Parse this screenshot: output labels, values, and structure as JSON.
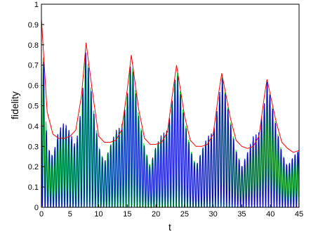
{
  "chart_data": {
    "type": "line",
    "xlabel": "t",
    "ylabel": "fidelity",
    "xlim": [
      0,
      45
    ],
    "ylim": [
      0,
      1
    ],
    "xticks": [
      "0",
      "5",
      "10",
      "15",
      "20",
      "25",
      "30",
      "35",
      "40",
      "45"
    ],
    "yticks": [
      "0",
      "0.1",
      "0.2",
      "0.3",
      "0.4",
      "0.5",
      "0.6",
      "0.7",
      "0.8",
      "0.9",
      "1"
    ],
    "grid": false,
    "legend": "none",
    "series": [
      {
        "color": "#ff0000",
        "style": "envelope",
        "x": [
          0,
          1,
          2,
          3,
          4,
          5,
          6,
          7,
          7.8,
          9,
          10,
          11,
          12,
          13,
          14,
          15,
          15.7,
          17,
          18,
          19,
          20,
          21,
          22,
          23,
          23.6,
          25,
          26,
          27,
          28,
          29,
          30,
          31,
          31.5,
          33,
          34,
          35,
          36,
          37,
          38,
          39,
          39.4,
          41,
          42,
          43,
          44,
          45
        ],
        "values": [
          0.93,
          0.47,
          0.36,
          0.34,
          0.34,
          0.35,
          0.38,
          0.55,
          0.81,
          0.55,
          0.35,
          0.32,
          0.32,
          0.33,
          0.38,
          0.58,
          0.75,
          0.48,
          0.34,
          0.31,
          0.31,
          0.32,
          0.37,
          0.58,
          0.7,
          0.45,
          0.33,
          0.3,
          0.3,
          0.31,
          0.36,
          0.57,
          0.66,
          0.44,
          0.33,
          0.3,
          0.29,
          0.3,
          0.35,
          0.56,
          0.63,
          0.42,
          0.32,
          0.29,
          0.27,
          0.28
        ]
      },
      {
        "color": "#0000cc",
        "style": "oscillation",
        "x": [
          0,
          1,
          2,
          3,
          4,
          5,
          6,
          7,
          7.8,
          9,
          10,
          11,
          12,
          13,
          14,
          15,
          15.7,
          17,
          18,
          19,
          20,
          21,
          22,
          23,
          23.6,
          25,
          26,
          27,
          28,
          29,
          30,
          31,
          31.5,
          33,
          34,
          35,
          36,
          37,
          38,
          39,
          39.4,
          41,
          42,
          43,
          44,
          45
        ],
        "values": [
          1.0,
          0.3,
          0.25,
          0.38,
          0.42,
          0.37,
          0.3,
          0.5,
          0.79,
          0.5,
          0.3,
          0.22,
          0.3,
          0.38,
          0.4,
          0.55,
          0.74,
          0.45,
          0.3,
          0.2,
          0.3,
          0.36,
          0.38,
          0.55,
          0.69,
          0.43,
          0.29,
          0.2,
          0.28,
          0.35,
          0.37,
          0.53,
          0.66,
          0.42,
          0.28,
          0.2,
          0.27,
          0.35,
          0.37,
          0.52,
          0.63,
          0.4,
          0.27,
          0.2,
          0.25,
          0.28
        ]
      },
      {
        "color": "#00ee22",
        "style": "oscillation",
        "x": [
          0,
          1,
          2,
          3,
          4,
          5,
          6,
          7,
          7.8,
          9,
          10,
          11,
          12,
          13,
          14,
          15,
          15.7,
          17,
          18,
          19,
          20,
          21,
          22,
          23,
          23.6,
          25,
          26,
          27,
          28,
          29,
          30,
          31,
          31.5,
          33,
          34,
          35,
          36,
          37,
          38,
          39,
          39.4,
          41,
          42,
          43,
          44,
          45
        ],
        "values": [
          0.95,
          0.3,
          0.25,
          0.36,
          0.4,
          0.35,
          0.28,
          0.5,
          0.79,
          0.5,
          0.3,
          0.22,
          0.3,
          0.36,
          0.38,
          0.55,
          0.74,
          0.45,
          0.3,
          0.2,
          0.3,
          0.34,
          0.36,
          0.55,
          0.69,
          0.43,
          0.29,
          0.2,
          0.28,
          0.33,
          0.35,
          0.53,
          0.65,
          0.42,
          0.28,
          0.2,
          0.27,
          0.33,
          0.35,
          0.52,
          0.62,
          0.4,
          0.27,
          0.2,
          0.25,
          0.28
        ]
      }
    ]
  }
}
